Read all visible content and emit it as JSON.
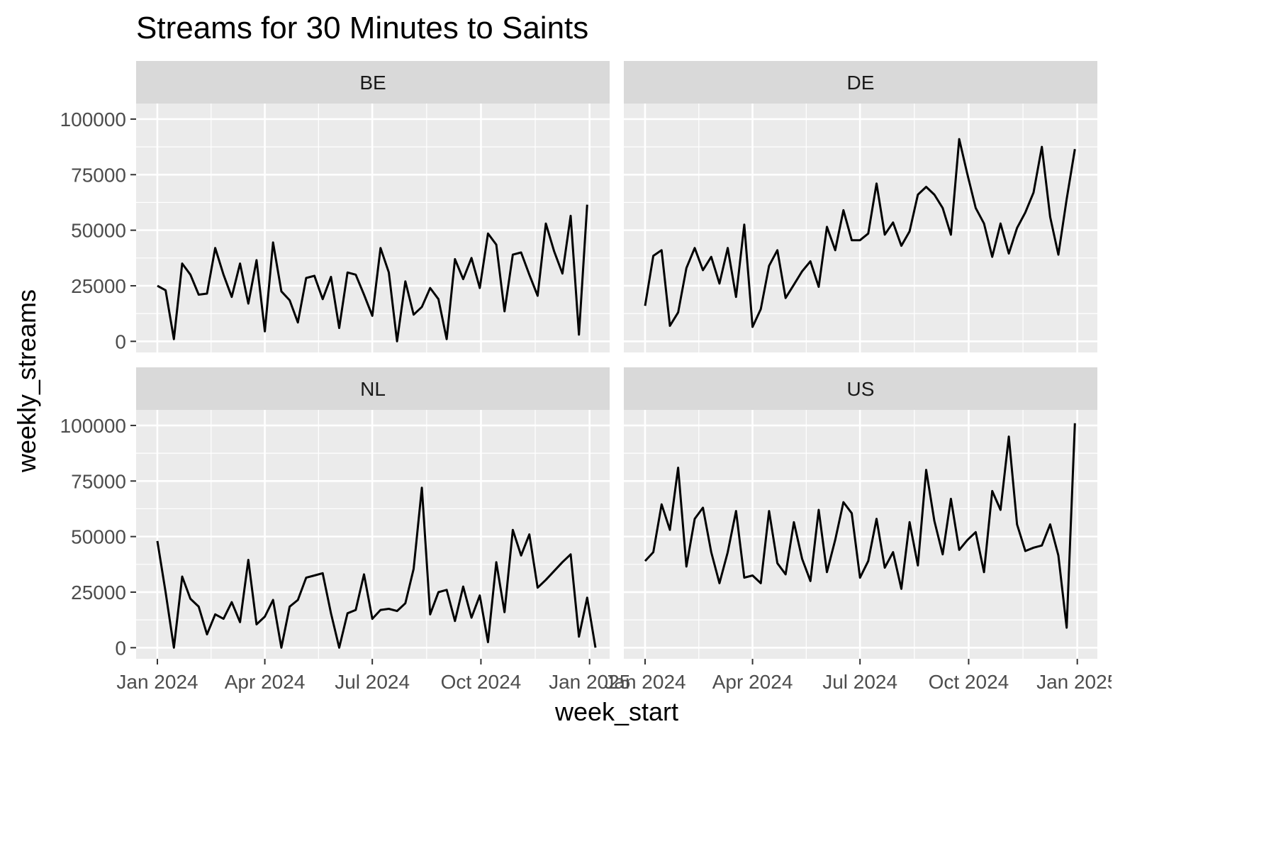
{
  "chart_data": {
    "type": "line",
    "title": "Streams for 30 Minutes to Saints",
    "xlabel": "week_start",
    "ylabel": "weekly_streams",
    "x_tick_labels": [
      "Jan 2024",
      "Apr 2024",
      "Jul 2024",
      "Oct 2024",
      "Jan 2025"
    ],
    "x_ticks": [
      "2024-01-01",
      "2024-04-01",
      "2024-07-01",
      "2024-10-01",
      "2025-01-01"
    ],
    "y_ticks": [
      0,
      25000,
      50000,
      75000,
      100000
    ],
    "y_tick_labels": [
      "0",
      "25000",
      "50000",
      "75000",
      "100000"
    ],
    "xlim": [
      "2023-12-14",
      "2025-01-18"
    ],
    "ylim": [
      -5000,
      107000
    ],
    "grid": true,
    "line_color": "#000000",
    "panel_bg": "#ebebeb",
    "strip_bg": "#d9d9d9",
    "panels": [
      {
        "label": "BE",
        "start": "2024-01-01",
        "values": [
          25000,
          23000,
          1000,
          35000,
          30000,
          21000,
          21500,
          42000,
          30000,
          20000,
          35000,
          17000,
          36500,
          4500,
          44500,
          22500,
          18500,
          8500,
          28500,
          29500,
          19000,
          29000,
          6000,
          31000,
          30000,
          21000,
          11500,
          42000,
          31000,
          0,
          27000,
          12000,
          15500,
          24000,
          19000,
          1000,
          37000,
          28000,
          37500,
          24000,
          48500,
          43500,
          13500,
          39000,
          40000,
          30000,
          20500,
          53000,
          40500,
          30500,
          56500,
          3000,
          61500
        ]
      },
      {
        "label": "DE",
        "start": "2024-01-01",
        "values": [
          16000,
          38500,
          41000,
          7000,
          13000,
          33000,
          42000,
          32000,
          38000,
          26000,
          42000,
          20000,
          52500,
          6500,
          14500,
          34000,
          41000,
          19500,
          25500,
          31500,
          36000,
          24500,
          51500,
          41000,
          59000,
          45500,
          45500,
          48500,
          71000,
          48000,
          53500,
          43000,
          49500,
          66000,
          69500,
          66000,
          60000,
          48000,
          91000,
          75000,
          60000,
          53000,
          38000,
          53000,
          39500,
          51000,
          58000,
          67000,
          87500,
          56000,
          39000,
          64000,
          86500
        ]
      },
      {
        "label": "NL",
        "start": "2024-01-01",
        "values": [
          48000,
          25000,
          0,
          32000,
          22000,
          18500,
          6000,
          15000,
          13000,
          20500,
          11500,
          39500,
          10500,
          14000,
          21500,
          0,
          18500,
          21500,
          31500,
          32500,
          33500,
          15500,
          0,
          15500,
          17000,
          33000,
          13000,
          17000,
          17500,
          16500,
          20000,
          35500,
          72000,
          15000,
          25000,
          26000,
          12000,
          27500,
          13500,
          23500,
          2500,
          38500,
          16000,
          53000,
          41500,
          51000,
          27000,
          30500,
          34500,
          38500,
          42000,
          5000,
          22500,
          0
        ]
      },
      {
        "label": "US",
        "start": "2024-01-01",
        "values": [
          39000,
          43000,
          64500,
          53000,
          81000,
          36500,
          58000,
          63000,
          43000,
          29000,
          43000,
          61500,
          31500,
          32500,
          29000,
          61500,
          38000,
          33000,
          56500,
          40000,
          30000,
          62000,
          34000,
          48500,
          65500,
          60500,
          31500,
          39000,
          58000,
          36000,
          43000,
          26500,
          56500,
          37000,
          80000,
          57000,
          42000,
          67000,
          44000,
          48500,
          52000,
          34000,
          70500,
          62000,
          95000,
          55500,
          43500,
          45000,
          46000,
          55500,
          41500,
          9000,
          101000
        ]
      }
    ]
  }
}
